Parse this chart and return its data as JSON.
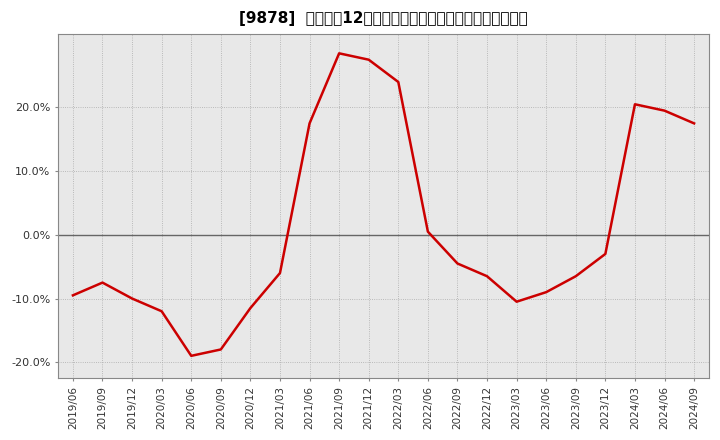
{
  "title": "[9878]  売上高の12か月移動合計の対前年同期増減率の推移",
  "x_labels": [
    "2019/06",
    "2019/09",
    "2019/12",
    "2020/03",
    "2020/06",
    "2020/09",
    "2020/12",
    "2021/03",
    "2021/06",
    "2021/09",
    "2021/12",
    "2022/03",
    "2022/06",
    "2022/09",
    "2022/12",
    "2023/03",
    "2023/06",
    "2023/09",
    "2023/12",
    "2024/03",
    "2024/06",
    "2024/09"
  ],
  "y_values": [
    -0.095,
    -0.075,
    -0.1,
    -0.12,
    -0.19,
    -0.18,
    -0.115,
    -0.06,
    0.175,
    0.285,
    0.275,
    0.24,
    0.005,
    -0.045,
    -0.065,
    -0.105,
    -0.09,
    -0.065,
    -0.03,
    0.205,
    0.195,
    0.175
  ],
  "line_color": "#cc0000",
  "background_color": "#ffffff",
  "plot_bg_color": "#e8e8e8",
  "grid_color": "#aaaaaa",
  "border_color": "#888888",
  "zero_line_color": "#666666",
  "ylim": [
    -0.225,
    0.315
  ],
  "yticks": [
    -0.2,
    -0.1,
    0.0,
    0.1,
    0.2
  ],
  "ytick_labels": [
    "-20.0%",
    "-10.0%",
    "0.0%",
    "10.0%",
    "20.0%"
  ],
  "title_fontsize": 11,
  "tick_fontsize": 7.5
}
